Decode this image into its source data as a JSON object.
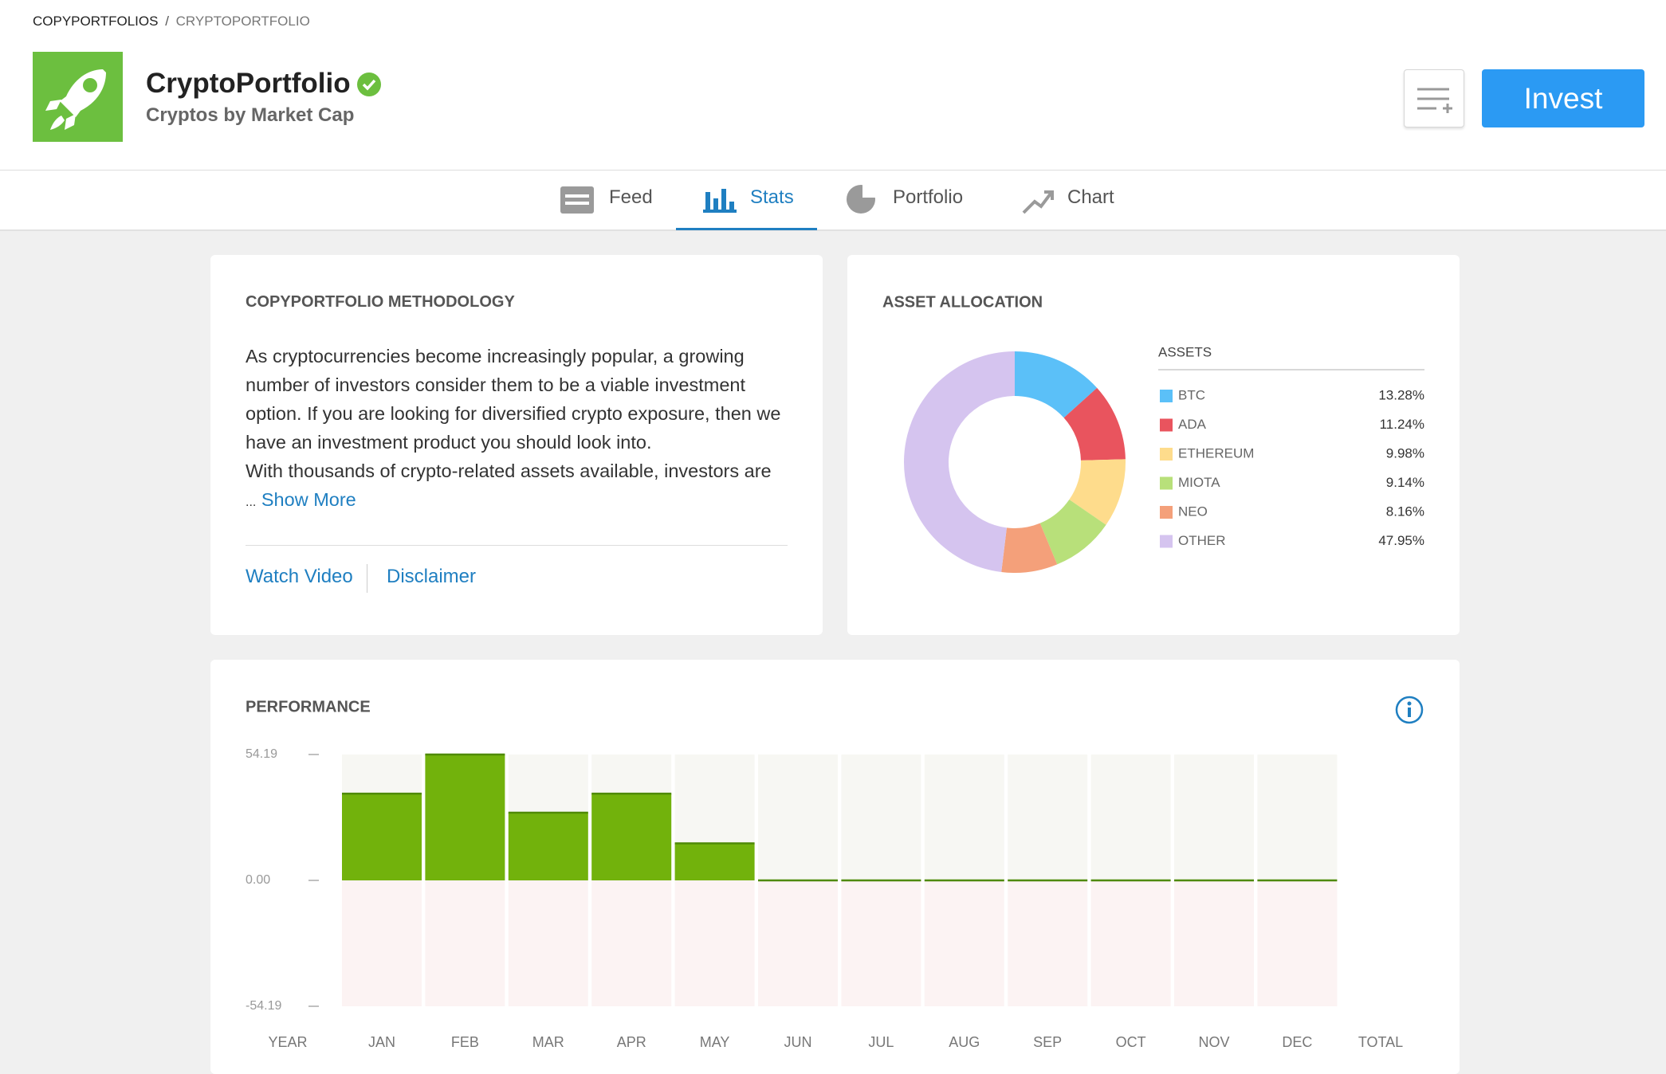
{
  "breadcrumb": [
    "COPYPORTFOLIOS",
    "CRYPTOPORTFOLIO"
  ],
  "breadcrumb_separator": "/",
  "header": {
    "title": "CryptoPortfolio",
    "subtitle": "Cryptos by Market Cap",
    "invest_button": "Invest"
  },
  "tabs": [
    "Feed",
    "Stats",
    "Portfolio",
    "Chart"
  ],
  "active_tab": 1,
  "methodology": {
    "title": "COPYPORTFOLIO METHODOLOGY",
    "paragraphs": [
      "As cryptocurrencies become increasingly popular, a growing number of investors consider them to be a viable investment option. If you are looking for diversified crypto exposure, then we have an investment product you should look into.",
      "With thousands of crypto-related assets available, investors are"
    ],
    "ellipsis": "...",
    "show_more": "Show More",
    "links": [
      "Watch Video",
      "Disclaimer"
    ]
  },
  "chart_data": [
    {
      "type": "pie",
      "title": "ASSET ALLOCATION",
      "legend_title": "ASSETS",
      "categories": [
        "BTC",
        "ADA",
        "ETHEREUM",
        "MIOTA",
        "NEO",
        "OTHER"
      ],
      "values": [
        13.28,
        11.24,
        9.98,
        9.14,
        8.16,
        47.95
      ],
      "value_labels": [
        "13.28%",
        "11.24%",
        "9.98%",
        "9.14%",
        "8.16%",
        "47.95%"
      ],
      "colors": [
        "#5bc0f8",
        "#e9545e",
        "#fedc8c",
        "#b8e07a",
        "#f4a07a",
        "#d5c4ef"
      ]
    },
    {
      "type": "bar",
      "title": "PERFORMANCE",
      "first_column_label": "YEAR",
      "last_column_label": "TOTAL",
      "categories": [
        "JAN",
        "FEB",
        "MAR",
        "APR",
        "MAY",
        "JUN",
        "JUL",
        "AUG",
        "SEP",
        "OCT",
        "NOV",
        "DEC"
      ],
      "values": [
        37.34,
        54.19,
        29.15,
        37.34,
        15.94,
        0,
        0,
        0,
        0,
        0,
        0,
        0
      ],
      "color": "#72b20c",
      "ylim": [
        -54.19,
        54.19
      ],
      "yticks": [
        54.19,
        {
          "value": 0,
          "label": "0.00"
        },
        -54.19
      ]
    }
  ]
}
